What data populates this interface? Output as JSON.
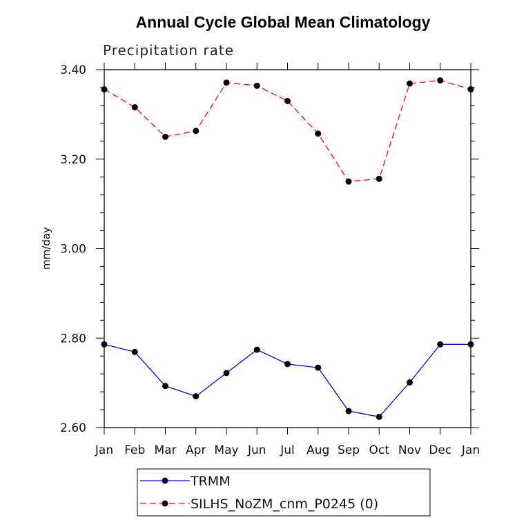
{
  "chart_data": {
    "type": "line",
    "title": "Annual Cycle Global Mean Climatology",
    "subtitle": "Precipitation rate",
    "xlabel": "",
    "ylabel": "mm/day",
    "categories": [
      "Jan",
      "Feb",
      "Mar",
      "Apr",
      "May",
      "Jun",
      "Jul",
      "Aug",
      "Sep",
      "Oct",
      "Nov",
      "Dec",
      "Jan"
    ],
    "ylim": [
      2.6,
      3.4
    ],
    "yticks": [
      2.6,
      2.8,
      3.0,
      3.2,
      3.4
    ],
    "ytick_labels": [
      "2.60",
      "2.80",
      "3.00",
      "3.20",
      "3.40"
    ],
    "series": [
      {
        "name": "TRMM",
        "color": "#0000ff",
        "dash": "solid",
        "marker": "circle",
        "values": [
          2.786,
          2.769,
          2.693,
          2.67,
          2.722,
          2.774,
          2.742,
          2.734,
          2.637,
          2.624,
          2.701,
          2.786,
          2.786
        ]
      },
      {
        "name": "SILHS_NoZM_cnm_P0245 (0)",
        "color": "#ff0000",
        "dash": "dashed",
        "marker": "circle",
        "values": [
          3.356,
          3.316,
          3.25,
          3.263,
          3.371,
          3.364,
          3.33,
          3.257,
          3.15,
          3.156,
          3.369,
          3.376,
          3.356
        ]
      }
    ],
    "grid": false,
    "legend": "bottom-center"
  }
}
